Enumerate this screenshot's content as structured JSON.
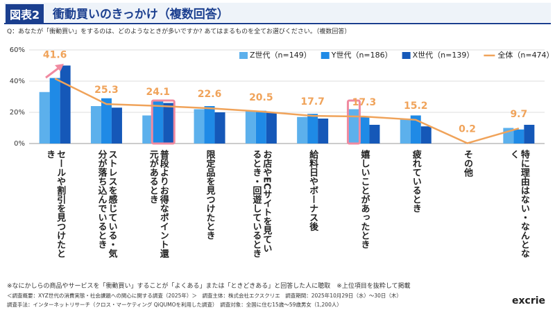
{
  "header": {
    "badge": "図表2",
    "title": "衝動買いのきっかけ（複数回答）",
    "question": "Q：あなたが「衝動買い」をするのは、どのようなときが多いですか? あてはまるものを全てお選びください。（複数回答）"
  },
  "chart_data": {
    "type": "bar",
    "categories": [
      "セールや割引を見つけたとき",
      "ストレスを感じている・気分が落ち込んでいるとき",
      "普段よりお得なポイント還元があるとき",
      "限定品を見つけたとき",
      "お店やECサイトを見ているとき・回遊しているとき",
      "給料日やボーナス後",
      "嬉しいことがあったとき",
      "疲れているとき",
      "その他",
      "特に理由はない・なんとなく"
    ],
    "series": [
      {
        "name": "Z世代（n=149）",
        "type": "bar",
        "color": "#5cb0ec",
        "values": [
          33,
          24,
          18,
          22,
          21,
          17,
          22,
          16,
          0,
          10
        ]
      },
      {
        "name": "Y世代（n=186）",
        "type": "bar",
        "color": "#1f8ae6",
        "values": [
          42,
          29,
          27,
          24,
          21,
          19,
          17,
          18,
          0,
          9
        ]
      },
      {
        "name": "X世代（n=139）",
        "type": "bar",
        "color": "#1558b8",
        "values": [
          50,
          23,
          26,
          20,
          20,
          16,
          12,
          11,
          0,
          12
        ]
      },
      {
        "name": "全体（n=474）",
        "type": "line",
        "color": "#f0a35a",
        "values": [
          41.6,
          25.3,
          24.1,
          22.6,
          20.5,
          17.7,
          17.3,
          15.2,
          0.2,
          9.7
        ]
      }
    ],
    "ylim": [
      0,
      60
    ],
    "yticks": [
      {
        "value": 0,
        "label": "0%"
      },
      {
        "value": 20,
        "label": "20%"
      },
      {
        "value": 40,
        "label": "40%"
      },
      {
        "value": 60,
        "label": "60%"
      }
    ],
    "grid": true
  },
  "notes": {
    "note": "※なにかしらの商品やサービスを「衝動買い」することが「よくある」または「ときどきある」と回答した人に聴取　※上位項目を抜粋して掲載",
    "survey1": "＜調査概要：XYZ世代の消費実態・社会課題への関心に関する調査（2025年）＞　調査主体：株式会社エクスクリエ　調査期間：2025年10月29日（水）～30日（木）",
    "survey2": "調査手法：インターネットリサーチ（クロス・マーケティング QiQUMOを利用した調査）　調査対象：全国に住む15歳～59歳男女（1,200人）",
    "logo": "excrie"
  }
}
